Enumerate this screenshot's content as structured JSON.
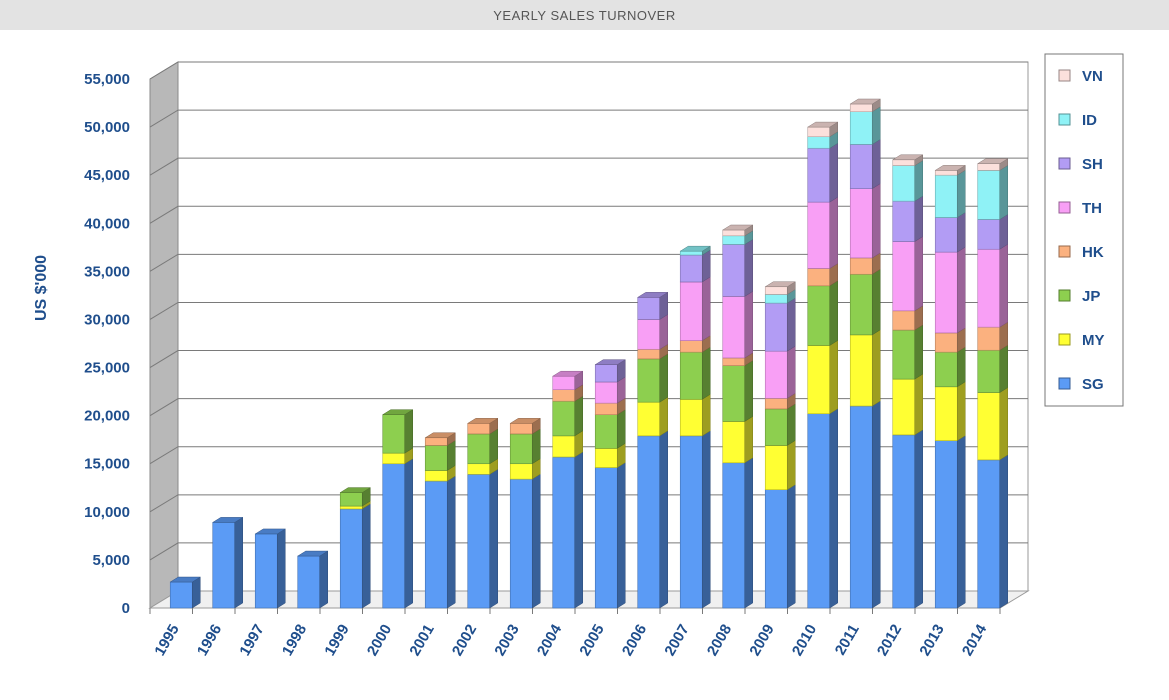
{
  "header": {
    "title": "YEARLY SALES TURNOVER"
  },
  "chart_data": {
    "type": "bar",
    "stacked": true,
    "title": "YEARLY SALES TURNOVER",
    "xlabel": "",
    "ylabel": "US $'000",
    "ylim": [
      0,
      55000
    ],
    "yticks": [
      0,
      5000,
      10000,
      15000,
      20000,
      25000,
      30000,
      35000,
      40000,
      45000,
      50000,
      55000
    ],
    "ytick_labels": [
      "0",
      "5,000",
      "10,000",
      "15,000",
      "20,000",
      "25,000",
      "30,000",
      "35,000",
      "40,000",
      "45,000",
      "50,000",
      "55,000"
    ],
    "grid": true,
    "legend_position": "right",
    "categories": [
      "1995",
      "1996",
      "1997",
      "1998",
      "1999",
      "2000",
      "2001",
      "2002",
      "2003",
      "2004",
      "2005",
      "2006",
      "2007",
      "2008",
      "2009",
      "2010",
      "2011",
      "2012",
      "2013",
      "2014"
    ],
    "series": [
      {
        "name": "SG",
        "color": "#5b9bf5",
        "values": [
          2700,
          8900,
          7700,
          5400,
          10300,
          15000,
          13200,
          13900,
          13400,
          15700,
          14600,
          17900,
          17900,
          15100,
          12300,
          20200,
          21000,
          18000,
          17400,
          15400
        ]
      },
      {
        "name": "MY",
        "color": "#ffff33",
        "values": [
          0,
          0,
          0,
          0,
          300,
          1100,
          1100,
          1100,
          1600,
          2200,
          2000,
          3500,
          3800,
          4300,
          4600,
          7100,
          7400,
          5800,
          5600,
          7000
        ]
      },
      {
        "name": "JP",
        "color": "#8dcf4f",
        "values": [
          0,
          0,
          0,
          0,
          1400,
          4000,
          2600,
          3100,
          3100,
          3600,
          3500,
          4500,
          4900,
          5800,
          3800,
          6200,
          6300,
          5100,
          3600,
          4400
        ]
      },
      {
        "name": "HK",
        "color": "#fbb17f",
        "values": [
          0,
          0,
          0,
          0,
          0,
          0,
          800,
          1100,
          1100,
          1200,
          1200,
          1000,
          1200,
          800,
          1100,
          1800,
          1700,
          2000,
          2000,
          2400
        ]
      },
      {
        "name": "TH",
        "color": "#f89ff5",
        "values": [
          0,
          0,
          0,
          0,
          0,
          0,
          0,
          0,
          0,
          1400,
          2200,
          3100,
          6100,
          6400,
          4900,
          6900,
          7200,
          7200,
          8400,
          8100
        ]
      },
      {
        "name": "SH",
        "color": "#b29cf4",
        "values": [
          0,
          0,
          0,
          0,
          0,
          0,
          0,
          0,
          0,
          0,
          1800,
          2300,
          2800,
          5400,
          5000,
          5600,
          4600,
          4200,
          3600,
          3100
        ]
      },
      {
        "name": "ID",
        "color": "#8ff2f6",
        "values": [
          0,
          0,
          0,
          0,
          0,
          0,
          0,
          0,
          0,
          0,
          0,
          0,
          400,
          900,
          900,
          1200,
          3400,
          3700,
          4400,
          5100
        ]
      },
      {
        "name": "VN",
        "color": "#fce0dc",
        "values": [
          0,
          0,
          0,
          0,
          0,
          0,
          0,
          0,
          0,
          0,
          0,
          0,
          0,
          600,
          800,
          1000,
          800,
          600,
          500,
          700
        ]
      }
    ]
  }
}
